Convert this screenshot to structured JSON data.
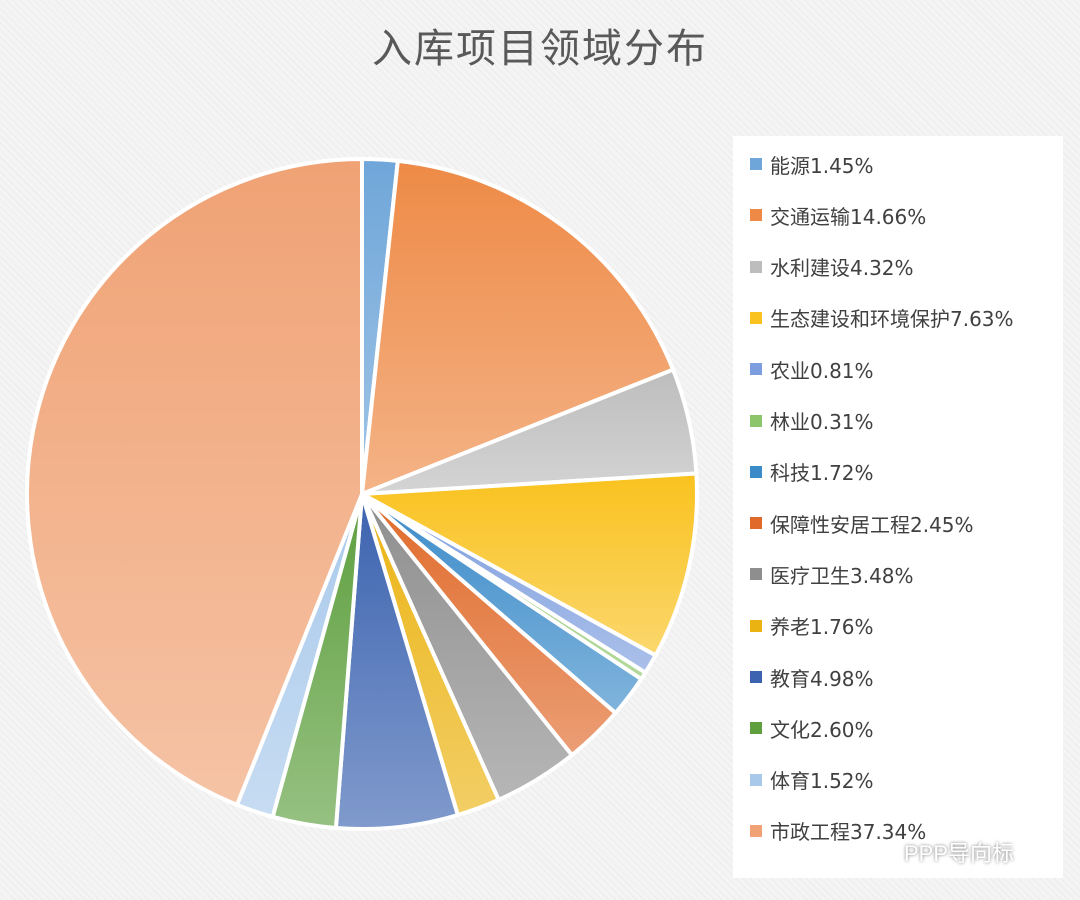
{
  "chart_data": {
    "type": "pie",
    "title": "入库项目领域分布",
    "legend_position": "right",
    "slices": [
      {
        "label": "能源1.45%",
        "value": 1.45,
        "color": "#6fa6d9"
      },
      {
        "label": "交通运输14.66%",
        "value": 14.66,
        "color": "#ee8a46"
      },
      {
        "label": "水利建设4.32%",
        "value": 4.32,
        "color": "#bdbdbd"
      },
      {
        "label": "生态建设和环境保护7.63%",
        "value": 7.63,
        "color": "#f9c21e"
      },
      {
        "label": "农业0.81%",
        "value": 0.81,
        "color": "#7d9ede"
      },
      {
        "label": "林业0.31%",
        "value": 0.31,
        "color": "#8dc56a"
      },
      {
        "label": "科技1.72%",
        "value": 1.72,
        "color": "#3b8bc9"
      },
      {
        "label": "保障性安居工程2.45%",
        "value": 2.45,
        "color": "#e06a2a"
      },
      {
        "label": "医疗卫生3.48%",
        "value": 3.48,
        "color": "#8e8e8e"
      },
      {
        "label": "养老1.76%",
        "value": 1.76,
        "color": "#ebb312"
      },
      {
        "label": "教育4.98%",
        "value": 4.98,
        "color": "#3c63b0"
      },
      {
        "label": "文化2.60%",
        "value": 2.6,
        "color": "#5e9f3e"
      },
      {
        "label": "体育1.52%",
        "value": 1.52,
        "color": "#a9c9eb"
      },
      {
        "label": "市政工程37.34%",
        "value": 37.34,
        "color": "#f0a274"
      }
    ]
  },
  "watermark": {
    "text": "PPP导向标",
    "icon": "wechat-icon"
  }
}
